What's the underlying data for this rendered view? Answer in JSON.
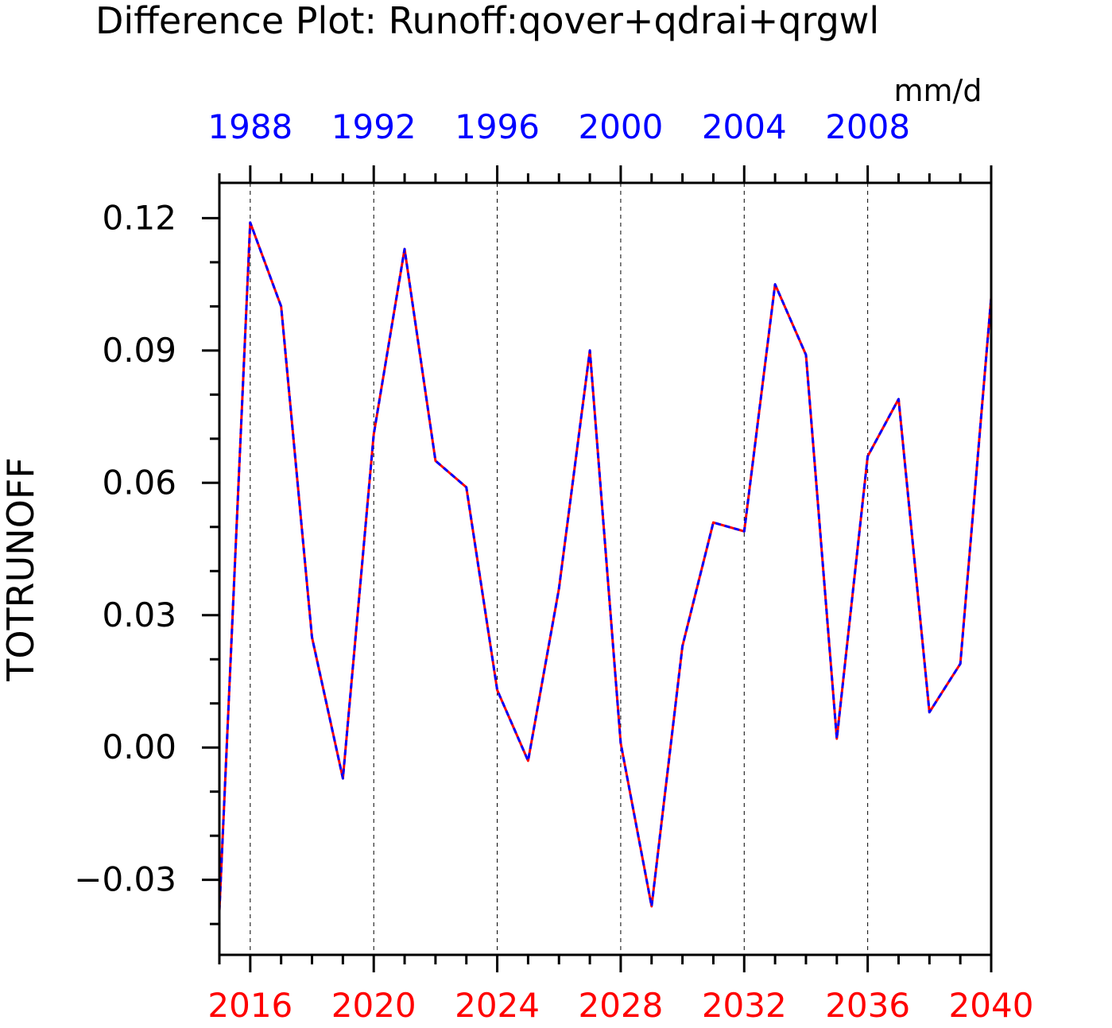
{
  "chart_data": {
    "type": "line",
    "title": "Difference Plot: Runoff:qover+qdrai+qrgwl",
    "units": "mm/d",
    "ylabel": "TOTRUNOFF",
    "ylim": [
      -0.047,
      0.128
    ],
    "yticks": [
      {
        "value": 0.12,
        "label": "0.12"
      },
      {
        "value": 0.09,
        "label": "0.09"
      },
      {
        "value": 0.06,
        "label": "0.06"
      },
      {
        "value": 0.03,
        "label": "0.03"
      },
      {
        "value": 0.0,
        "label": "0.00"
      },
      {
        "value": -0.03,
        "label": "−0.03"
      }
    ],
    "y_minor_step": 0.01,
    "bottom_axis": {
      "color": "#ff0000",
      "range": [
        2015,
        2040
      ],
      "major_step": 4,
      "labels": [
        "2016",
        "2020",
        "2024",
        "2028",
        "2032",
        "2036",
        "2040"
      ]
    },
    "top_axis": {
      "color": "#0000ff",
      "range": [
        1987,
        2012
      ],
      "labels": [
        "1988",
        "1992",
        "1996",
        "2000",
        "2004",
        "2008"
      ]
    },
    "grid": "vertical dashed at major bottom-axis ticks",
    "series": [
      {
        "color": "#ff0000",
        "style": "solid",
        "x": [
          2015,
          2016,
          2017,
          2018,
          2019,
          2020,
          2021,
          2022,
          2023,
          2024,
          2025,
          2026,
          2027,
          2028,
          2029,
          2030,
          2031,
          2032,
          2033,
          2034,
          2035,
          2036,
          2037,
          2038,
          2039,
          2040
        ],
        "values": [
          -0.037,
          0.119,
          0.1,
          0.025,
          -0.007,
          0.071,
          0.113,
          0.065,
          0.059,
          0.013,
          -0.003,
          0.036,
          0.09,
          0.001,
          -0.036,
          0.023,
          0.051,
          0.049,
          0.105,
          0.089,
          0.002,
          0.066,
          0.079,
          0.008,
          0.019,
          0.102
        ]
      },
      {
        "color": "#0000ff",
        "style": "dashed",
        "x": [
          1987,
          1988,
          1989,
          1990,
          1991,
          1992,
          1993,
          1994,
          1995,
          1996,
          1997,
          1998,
          1999,
          2000,
          2001,
          2002,
          2003,
          2004,
          2005,
          2006,
          2007,
          2008,
          2009,
          2010,
          2011,
          2012
        ],
        "values": [
          -0.037,
          0.119,
          0.1,
          0.025,
          -0.007,
          0.071,
          0.113,
          0.065,
          0.059,
          0.013,
          -0.003,
          0.036,
          0.09,
          0.001,
          -0.036,
          0.023,
          0.051,
          0.049,
          0.105,
          0.089,
          0.002,
          0.066,
          0.079,
          0.008,
          0.019,
          0.102
        ]
      }
    ]
  }
}
